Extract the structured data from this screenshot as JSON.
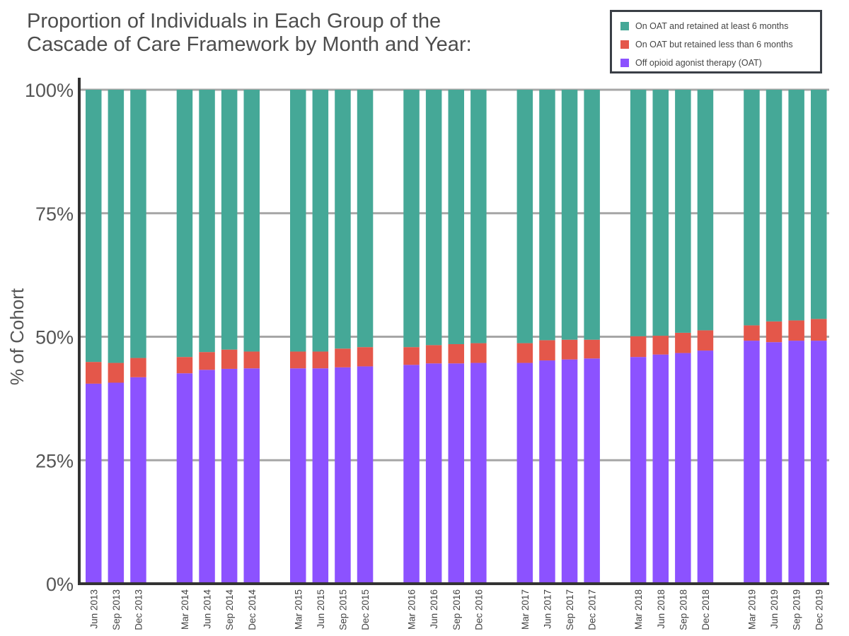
{
  "title_line1": "Proportion of Individuals in Each Group of the",
  "title_line2": "Cascade of Care Framework by Month and Year:",
  "colors": {
    "retained": "#45a897",
    "short": "#e4574a",
    "off": "#8c52ff",
    "grid": "#a6a6a6",
    "axis": "#333333"
  },
  "legend": [
    {
      "label": "On OAT and retained at least 6 months",
      "color": "#45a897"
    },
    {
      "label": "On OAT but retained less than 6 months",
      "color": "#e4574a"
    },
    {
      "label": "Off opioid agonist therapy (OAT)",
      "color": "#8c52ff"
    }
  ],
  "chart_data": {
    "type": "bar",
    "stacked": true,
    "title": "Proportion of Individuals in Each Group of the Cascade of Care Framework by Month and Year:",
    "xlabel": "",
    "ylabel": "% of Cohort",
    "ylim": [
      0,
      100
    ],
    "yticks": [
      "0%",
      "25%",
      "50%",
      "75%",
      "100%"
    ],
    "grid": true,
    "legend_position": "top-right",
    "groups": [
      [
        "Jun 2013",
        "Sep 2013",
        "Dec 2013"
      ],
      [
        "Mar 2014",
        "Jun 2014",
        "Sep 2014",
        "Dec 2014"
      ],
      [
        "Mar 2015",
        "Jun 2015",
        "Sep 2015",
        "Dec 2015"
      ],
      [
        "Mar 2016",
        "Jun 2016",
        "Sep 2016",
        "Dec 2016"
      ],
      [
        "Mar 2017",
        "Jun 2017",
        "Sep 2017",
        "Dec 2017"
      ],
      [
        "Mar 2018",
        "Jun 2018",
        "Sep 2018",
        "Dec 2018"
      ],
      [
        "Mar 2019",
        "Jun 2019",
        "Sep 2019",
        "Dec 2019"
      ]
    ],
    "categories": [
      "Jun 2013",
      "Sep 2013",
      "Dec 2013",
      "Mar 2014",
      "Jun 2014",
      "Sep 2014",
      "Dec 2014",
      "Mar 2015",
      "Jun 2015",
      "Sep 2015",
      "Dec 2015",
      "Mar 2016",
      "Jun 2016",
      "Sep 2016",
      "Dec 2016",
      "Mar 2017",
      "Jun 2017",
      "Sep 2017",
      "Dec 2017",
      "Mar 2018",
      "Jun 2018",
      "Sep 2018",
      "Dec 2018",
      "Mar 2019",
      "Jun 2019",
      "Sep 2019",
      "Dec 2019"
    ],
    "series": [
      {
        "name": "Off opioid agonist therapy (OAT)",
        "values": [
          40.5,
          40.7,
          41.8,
          42.6,
          43.3,
          43.5,
          43.6,
          43.6,
          43.6,
          43.8,
          44.0,
          44.3,
          44.6,
          44.6,
          44.7,
          44.7,
          45.2,
          45.4,
          45.6,
          45.9,
          46.4,
          46.7,
          47.2,
          49.2,
          48.9,
          49.2,
          49.2
        ]
      },
      {
        "name": "On OAT but retained less than 6 months",
        "values": [
          4.4,
          4.0,
          3.9,
          3.3,
          3.6,
          3.9,
          3.4,
          3.4,
          3.4,
          3.8,
          3.9,
          3.6,
          3.7,
          3.9,
          4.0,
          4.0,
          4.1,
          4.0,
          3.8,
          4.2,
          3.8,
          4.1,
          4.1,
          3.1,
          4.2,
          4.1,
          4.4
        ]
      },
      {
        "name": "On OAT and retained at least 6 months",
        "values": [
          55.1,
          55.3,
          54.3,
          54.1,
          53.1,
          52.6,
          53.0,
          53.0,
          53.0,
          52.4,
          52.1,
          52.1,
          51.7,
          51.5,
          51.3,
          51.3,
          50.7,
          50.6,
          50.6,
          49.9,
          49.8,
          49.2,
          48.7,
          47.7,
          46.9,
          46.7,
          46.4
        ]
      }
    ]
  }
}
